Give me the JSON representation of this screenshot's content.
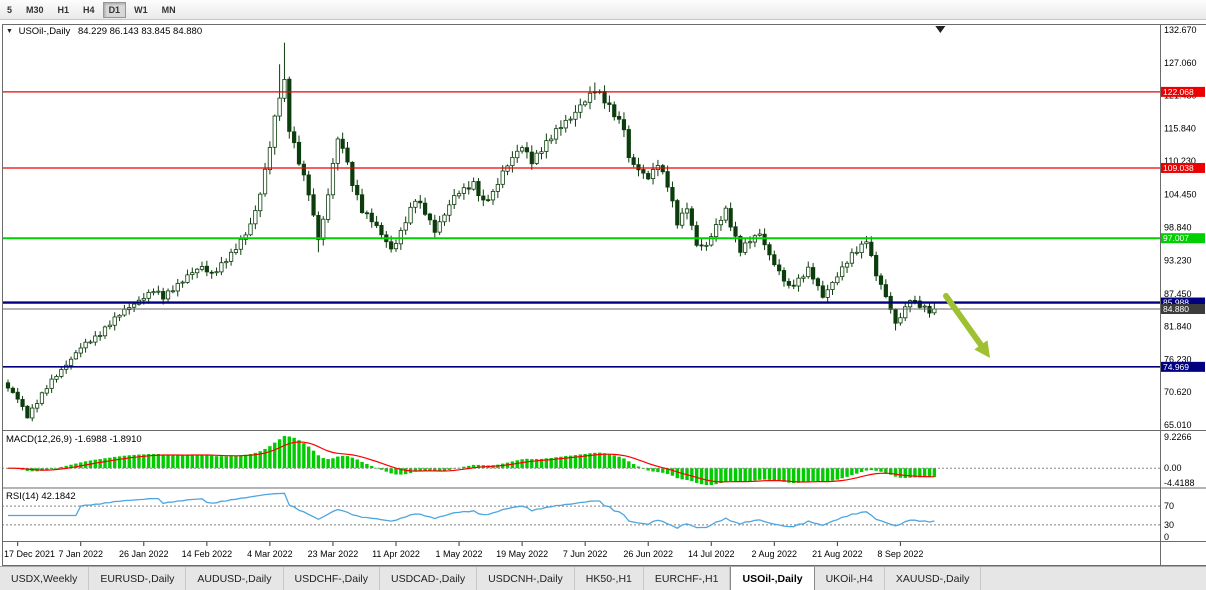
{
  "toolbar": {
    "periods": [
      "5",
      "M30",
      "H1",
      "H4",
      "D1",
      "W1",
      "MN"
    ]
  },
  "header": {
    "symbol": "USOil-,Daily",
    "ohlc": "84.229 86.143 83.845 84.880"
  },
  "chart_data": {
    "type": "candlestick",
    "symbol": "USOil-,Daily",
    "timeframe": "Daily",
    "last_ohlc": {
      "open": 84.229,
      "high": 86.143,
      "low": 83.845,
      "close": 84.88
    },
    "y_range": [
      65.01,
      132.67
    ],
    "y_axis_ticks": [
      132.67,
      127.06,
      121.45,
      115.84,
      110.23,
      104.45,
      98.84,
      93.23,
      87.45,
      81.84,
      76.23,
      70.62,
      65.01
    ],
    "x_labels": [
      "17 Dec 2021",
      "7 Jan 2022",
      "26 Jan 2022",
      "14 Feb 2022",
      "4 Mar 2022",
      "23 Mar 2022",
      "11 Apr 2022",
      "1 May 2022",
      "19 May 2022",
      "7 Jun 2022",
      "26 Jun 2022",
      "14 Jul 2022",
      "2 Aug 2022",
      "21 Aug 2022",
      "8 Sep 2022"
    ],
    "label_start_index": 2,
    "label_step": 13,
    "num_candles": 192,
    "anchors": [
      [
        0,
        71.2
      ],
      [
        2,
        69.5
      ],
      [
        4,
        66.6
      ],
      [
        6,
        69.0
      ],
      [
        9,
        72.5
      ],
      [
        12,
        75.5
      ],
      [
        15,
        78.2
      ],
      [
        18,
        80.0
      ],
      [
        21,
        82.5
      ],
      [
        24,
        84.5
      ],
      [
        27,
        86.5
      ],
      [
        30,
        88.0
      ],
      [
        32,
        86.8
      ],
      [
        34,
        88.5
      ],
      [
        37,
        90.5
      ],
      [
        40,
        92.0
      ],
      [
        42,
        91.0
      ],
      [
        44,
        92.5
      ],
      [
        46,
        94.0
      ],
      [
        48,
        96.5
      ],
      [
        50,
        99.5
      ],
      [
        52,
        104.5
      ],
      [
        54,
        112.5
      ],
      [
        55,
        117.5
      ],
      [
        56,
        121.5
      ],
      [
        57,
        124.0
      ],
      [
        58,
        116.0
      ],
      [
        60,
        110.0
      ],
      [
        62,
        104.5
      ],
      [
        64,
        97.0
      ],
      [
        65,
        100.5
      ],
      [
        66,
        104.5
      ],
      [
        67,
        110.0
      ],
      [
        68,
        113.5
      ],
      [
        69,
        112.5
      ],
      [
        71,
        106.5
      ],
      [
        73,
        102.0
      ],
      [
        75,
        100.0
      ],
      [
        77,
        97.5
      ],
      [
        79,
        95.2
      ],
      [
        80,
        96.5
      ],
      [
        82,
        100.0
      ],
      [
        84,
        103.5
      ],
      [
        86,
        101.5
      ],
      [
        88,
        98.5
      ],
      [
        90,
        101.0
      ],
      [
        92,
        104.0
      ],
      [
        94,
        105.5
      ],
      [
        96,
        106.5
      ],
      [
        98,
        103.0
      ],
      [
        100,
        104.5
      ],
      [
        102,
        108.5
      ],
      [
        104,
        111.0
      ],
      [
        106,
        112.5
      ],
      [
        108,
        110.0
      ],
      [
        110,
        112.5
      ],
      [
        112,
        114.5
      ],
      [
        114,
        116.0
      ],
      [
        116,
        117.5
      ],
      [
        118,
        120.0
      ],
      [
        120,
        121.5
      ],
      [
        121,
        122.3
      ],
      [
        123,
        120.5
      ],
      [
        125,
        118.5
      ],
      [
        127,
        116.0
      ],
      [
        128,
        110.5
      ],
      [
        130,
        108.5
      ],
      [
        132,
        107.5
      ],
      [
        134,
        110.0
      ],
      [
        136,
        106.0
      ],
      [
        138,
        99.5
      ],
      [
        140,
        102.5
      ],
      [
        142,
        96.0
      ],
      [
        144,
        95.5
      ],
      [
        146,
        99.0
      ],
      [
        148,
        102.0
      ],
      [
        150,
        97.0
      ],
      [
        151,
        94.8
      ],
      [
        153,
        96.5
      ],
      [
        155,
        98.0
      ],
      [
        157,
        94.2
      ],
      [
        159,
        91.0
      ],
      [
        161,
        88.5
      ],
      [
        163,
        90.0
      ],
      [
        165,
        91.8
      ],
      [
        167,
        88.5
      ],
      [
        168,
        86.8
      ],
      [
        170,
        89.5
      ],
      [
        172,
        92.0
      ],
      [
        174,
        94.0
      ],
      [
        176,
        95.5
      ],
      [
        177,
        96.8
      ],
      [
        179,
        91.0
      ],
      [
        181,
        87.0
      ],
      [
        183,
        82.2
      ],
      [
        184,
        83.5
      ],
      [
        186,
        86.8
      ],
      [
        188,
        85.5
      ],
      [
        190,
        84.3
      ],
      [
        191,
        84.88
      ]
    ],
    "overrides": {
      "4": {
        "l": 66.1
      },
      "56": {
        "h": 126.8
      },
      "57": {
        "h": 130.5
      },
      "64": {
        "l": 94.6
      },
      "121": {
        "h": 123.68
      },
      "177": {
        "h": 97.4
      },
      "183": {
        "l": 81.2
      }
    },
    "hlines": [
      {
        "price": 122.068,
        "label": "122.068",
        "color": "#ee0000",
        "width": 1.2
      },
      {
        "price": 109.038,
        "label": "109.038",
        "color": "#ee0000",
        "width": 1.2
      },
      {
        "price": 97.007,
        "label": "97.007",
        "color": "#00d000",
        "width": 2
      },
      {
        "price": 85.988,
        "label": "85.988",
        "color": "#000080",
        "width": 2.4
      },
      {
        "price": 74.969,
        "label": "74.969",
        "color": "#000080",
        "width": 1.6
      }
    ],
    "bid_line": {
      "price": 84.88,
      "label": "84.880"
    },
    "macd": {
      "label_text": "MACD(12,26,9) -1.6988 -1.8910",
      "params": [
        12,
        26,
        9
      ],
      "current": [
        -1.6988,
        -1.891
      ],
      "axis": [
        "9.2266",
        "0.00",
        "-4.4188"
      ]
    },
    "rsi": {
      "label_text": "RSI(14) 42.1842",
      "period": 14,
      "current": 42.1842,
      "axis": [
        "70",
        "30",
        "0"
      ],
      "levels": [
        70,
        30
      ]
    },
    "colors": {
      "bull_fill": "#ffffff",
      "bear_fill": "#0c3d0c",
      "candle_outline": "#0c3d0c",
      "macd_bar": "#00cc00",
      "macd_signal": "#ff0000",
      "rsi_line": "#4da6e0",
      "arrow": "#9fc131",
      "bid_badge": "#3c3c3c",
      "bid_line": "#666666"
    }
  },
  "tabs": [
    "USDX,Weekly",
    "EURUSD-,Daily",
    "AUDUSD-,Daily",
    "USDCHF-,Daily",
    "USDCAD-,Daily",
    "USDCNH-,Daily",
    "HK50-,H1",
    "EURCHF-,H1",
    "USOil-,Daily",
    "UKOil-,H4",
    "XAUUSD-,Daily"
  ]
}
